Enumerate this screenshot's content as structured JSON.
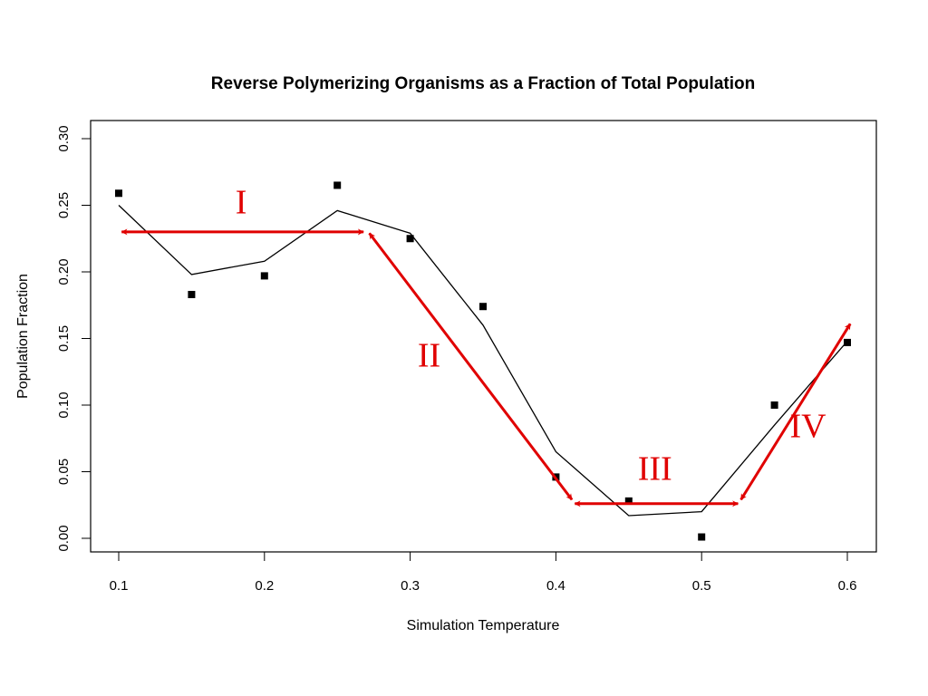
{
  "chart_data": {
    "type": "scatter",
    "title": "Reverse Polymerizing Organisms as a Fraction of Total Population",
    "xlabel": "Simulation Temperature",
    "ylabel": "Population Fraction",
    "xlim": [
      0.1,
      0.6
    ],
    "ylim": [
      0.0,
      0.3
    ],
    "x_ticks": [
      0.1,
      0.2,
      0.3,
      0.4,
      0.5,
      0.6
    ],
    "x_tick_labels": [
      "0.1",
      "0.2",
      "0.3",
      "0.4",
      "0.5",
      "0.6"
    ],
    "y_ticks": [
      0.0,
      0.05,
      0.1,
      0.15,
      0.2,
      0.25,
      0.3
    ],
    "y_tick_labels": [
      "0.00",
      "0.05",
      "0.10",
      "0.15",
      "0.20",
      "0.25",
      "0.30"
    ],
    "grid": false,
    "points": {
      "x": [
        0.1,
        0.15,
        0.2,
        0.25,
        0.3,
        0.35,
        0.4,
        0.45,
        0.5,
        0.55,
        0.6
      ],
      "y": [
        0.259,
        0.183,
        0.197,
        0.265,
        0.225,
        0.174,
        0.046,
        0.028,
        0.001,
        0.1,
        0.147
      ]
    },
    "smooth_line": {
      "x": [
        0.1,
        0.15,
        0.2,
        0.25,
        0.3,
        0.35,
        0.4,
        0.45,
        0.5,
        0.55,
        0.6
      ],
      "y": [
        0.25,
        0.198,
        0.208,
        0.246,
        0.229,
        0.16,
        0.065,
        0.017,
        0.02,
        0.085,
        0.148
      ]
    },
    "annotations": [
      {
        "label": "I",
        "label_x": 0.184,
        "label_y": 0.244,
        "arrow": {
          "x1": 0.102,
          "y1": 0.23,
          "x2": 0.268,
          "y2": 0.23,
          "double": true
        }
      },
      {
        "label": "II",
        "label_x": 0.313,
        "label_y": 0.129,
        "arrow": {
          "x1": 0.272,
          "y1": 0.229,
          "x2": 0.411,
          "y2": 0.029,
          "double": true
        }
      },
      {
        "label": "III",
        "label_x": 0.468,
        "label_y": 0.044,
        "arrow": {
          "x1": 0.413,
          "y1": 0.026,
          "x2": 0.525,
          "y2": 0.026,
          "double": true
        }
      },
      {
        "label": "IV",
        "label_x": 0.573,
        "label_y": 0.076,
        "arrow": {
          "x1": 0.527,
          "y1": 0.029,
          "x2": 0.602,
          "y2": 0.161,
          "double": true
        }
      }
    ],
    "annotation_color": "#e00000",
    "point_color": "#000000",
    "line_color": "#000000"
  }
}
